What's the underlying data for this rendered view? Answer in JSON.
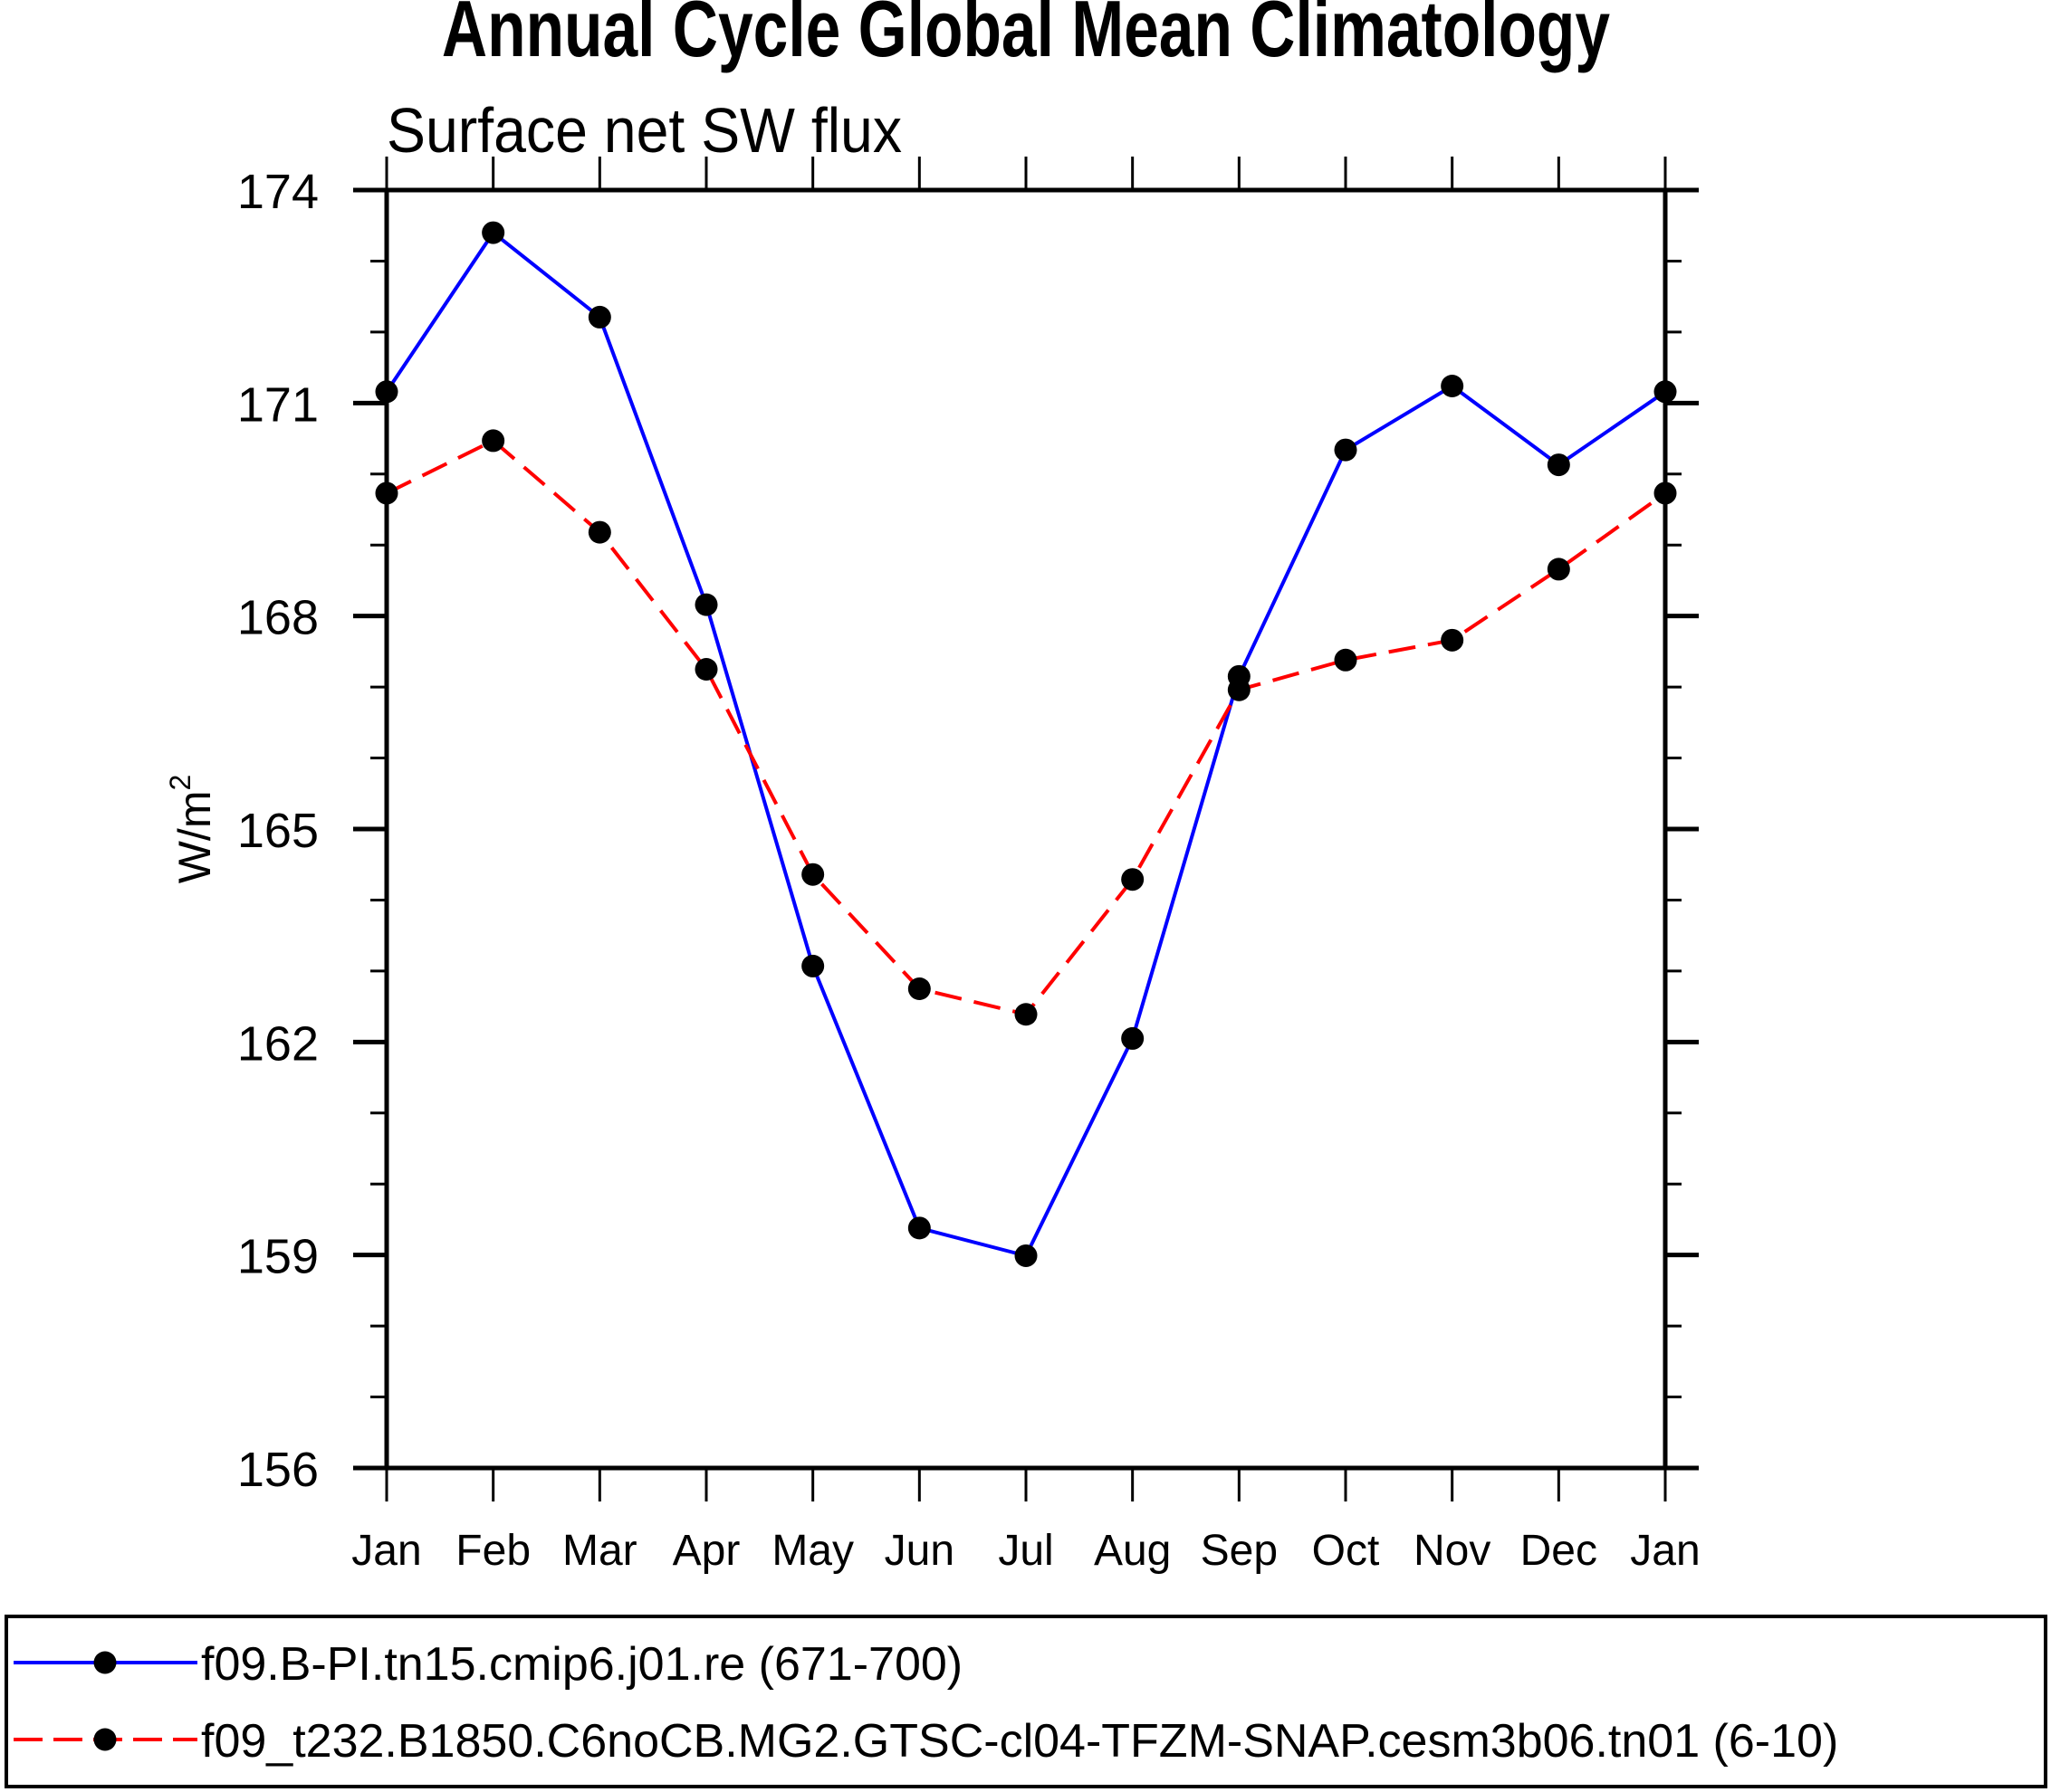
{
  "chart_data": {
    "type": "line",
    "title": "Annual Cycle Global Mean Climatology",
    "subtitle": "Surface net SW flux",
    "xlabel": "",
    "ylabel": "W/m",
    "ylabel_superscript": "2",
    "categories": [
      "Jan",
      "Feb",
      "Mar",
      "Apr",
      "May",
      "Jun",
      "Jul",
      "Aug",
      "Sep",
      "Oct",
      "Nov",
      "Dec",
      "Jan"
    ],
    "ylim": [
      156,
      174
    ],
    "yticks": [
      156,
      159,
      162,
      165,
      168,
      171,
      174
    ],
    "yticks_minor_step": 1,
    "grid": false,
    "legend_position": "bottom",
    "series": [
      {
        "name": "f09.B-PI.tn15.cmip6.j01.re (671-700)",
        "color": "#0000ff",
        "dash": "solid",
        "marker": "filled-circle",
        "marker_color": "#000000",
        "values": [
          171.16,
          173.4,
          172.21,
          168.16,
          163.07,
          159.38,
          158.99,
          162.05,
          167.15,
          170.34,
          171.24,
          170.13,
          171.16
        ]
      },
      {
        "name": "f09_t232.B1850.C6noCB.MG2.GTSC-cl04-TFZM-SNAP.cesm3b06.tn01 (6-10)",
        "color": "#ff0000",
        "dash": "dashed",
        "marker": "filled-circle",
        "marker_color": "#000000",
        "values": [
          169.73,
          170.47,
          169.18,
          167.25,
          164.36,
          162.75,
          162.39,
          164.29,
          166.96,
          167.38,
          167.66,
          168.66,
          169.73
        ]
      }
    ]
  }
}
